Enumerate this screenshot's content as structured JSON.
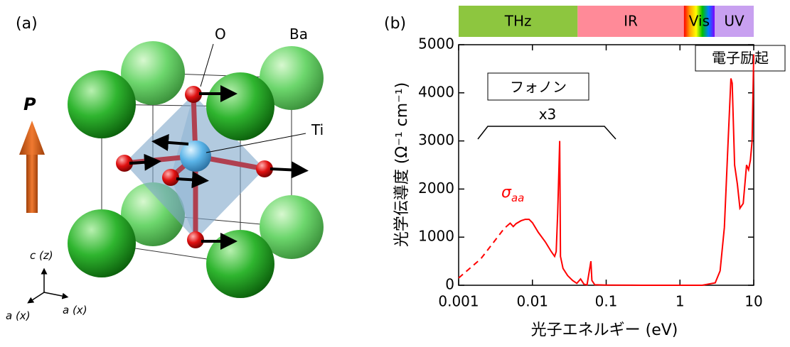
{
  "diagram": {
    "panel_label": "(a)",
    "labels": {
      "o": "O",
      "ba": "Ba",
      "ti": "Ti",
      "p": "P",
      "c": "c (z)",
      "a1": "a (x)",
      "a2": "a (x)"
    }
  },
  "chart_data": {
    "type": "line",
    "panel_label": "(b)",
    "xlabel": "光子エネルギー (eV)",
    "ylabel": "光学伝導度 (Ω⁻¹ cm⁻¹)",
    "xscale": "log",
    "xlim": [
      0.001,
      10
    ],
    "xticks": [
      0.001,
      0.01,
      0.1,
      1,
      10
    ],
    "ylim": [
      0,
      5000
    ],
    "yticks": [
      0,
      1000,
      2000,
      3000,
      4000,
      5000
    ],
    "bands": [
      {
        "label": "THz",
        "start": 0.001,
        "end": 0.041,
        "color": "#8dc63f"
      },
      {
        "label": "IR",
        "start": 0.041,
        "end": 1.13,
        "color": "#ff8a98"
      },
      {
        "label": "Vis",
        "start": 1.13,
        "end": 2.95,
        "colors": [
          "#ff0000",
          "#ffa500",
          "#ffff00",
          "#00c000",
          "#0080ff",
          "#8000ff"
        ]
      },
      {
        "label": "UV",
        "start": 2.95,
        "end": 10,
        "color": "#c8a0f0"
      }
    ],
    "annotations": {
      "phonon": "フォノン",
      "scale": "x3",
      "electronic": "電子励起",
      "symbol": "σ",
      "subscript": "aa"
    },
    "series": [
      {
        "color": "#ff0000",
        "style": "dashed",
        "x": [
          0.001,
          0.002,
          0.003,
          0.004,
          0.0045
        ],
        "values": [
          150,
          550,
          900,
          1150,
          1230
        ]
      },
      {
        "color": "#ff0000",
        "style": "solid",
        "x": [
          0.0045,
          0.005,
          0.0055,
          0.006,
          0.007,
          0.008,
          0.009,
          0.01,
          0.012,
          0.015,
          0.018,
          0.02,
          0.021,
          0.022,
          0.0234,
          0.0238,
          0.024,
          0.026,
          0.03,
          0.035,
          0.04,
          0.045,
          0.05,
          0.055,
          0.062,
          0.064,
          0.07,
          0.1,
          0.3,
          1,
          2,
          3,
          3.5,
          4,
          4.5,
          4.9,
          5.1,
          5.5,
          6,
          6.5,
          7.2,
          8,
          8.5,
          9,
          9.5,
          10
        ],
        "values": [
          1230,
          1290,
          1220,
          1280,
          1340,
          1370,
          1370,
          1300,
          1100,
          900,
          700,
          600,
          700,
          1500,
          3000,
          1500,
          600,
          350,
          200,
          100,
          40,
          130,
          20,
          10,
          500,
          100,
          10,
          5,
          0,
          0,
          0,
          50,
          300,
          1200,
          3000,
          4300,
          4200,
          2500,
          2100,
          1600,
          1700,
          2500,
          2400,
          2600,
          3000,
          4800
        ]
      }
    ]
  }
}
